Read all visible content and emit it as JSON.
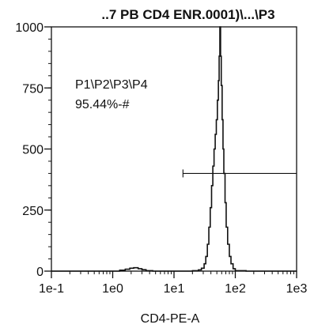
{
  "chart_data": {
    "type": "area",
    "title": "..7 PB CD4 ENR.0001)\\...\\P3",
    "xlabel": "CD4-PE-A",
    "ylabel": "",
    "x_scale": "log",
    "xlim": [
      0.1,
      1000
    ],
    "ylim": [
      0,
      1000
    ],
    "x_ticks": [
      {
        "value": 0.1,
        "label": "1e-1"
      },
      {
        "value": 1,
        "label": "1e0"
      },
      {
        "value": 10,
        "label": "1e1"
      },
      {
        "value": 100,
        "label": "1e2"
      },
      {
        "value": 1000,
        "label": "1e3"
      }
    ],
    "y_ticks": [
      {
        "value": 0,
        "label": "0"
      },
      {
        "value": 250,
        "label": "250"
      },
      {
        "value": 500,
        "label": "500"
      },
      {
        "value": 750,
        "label": "750"
      },
      {
        "value": 1000,
        "label": "1000"
      }
    ],
    "grid": false,
    "series": [
      {
        "x": [
          0.1,
          0.5,
          1.0,
          1.3,
          1.6,
          1.9,
          2.2,
          2.6,
          3.0,
          3.5,
          4.5,
          8,
          15,
          20,
          25,
          28,
          31,
          33,
          35,
          37,
          39,
          41,
          43,
          45,
          47,
          49,
          51,
          53,
          54.5,
          56,
          57.5,
          59,
          61,
          63,
          65,
          68,
          71,
          75,
          80,
          85,
          92,
          100,
          150,
          1000
        ],
        "values": [
          0,
          0,
          0,
          4,
          8,
          12,
          14,
          10,
          6,
          2,
          0,
          0,
          0,
          2,
          5,
          12,
          30,
          60,
          110,
          180,
          260,
          350,
          430,
          500,
          560,
          620,
          700,
          780,
          880,
          1000,
          880,
          760,
          620,
          500,
          400,
          280,
          180,
          110,
          60,
          30,
          10,
          2,
          0,
          0
        ]
      }
    ],
    "gate": {
      "label_line1": "P1\\P2\\P3\\P4",
      "label_line2": "95.44%-#",
      "x_range": [
        14,
        1000
      ],
      "y_level": 400
    }
  }
}
